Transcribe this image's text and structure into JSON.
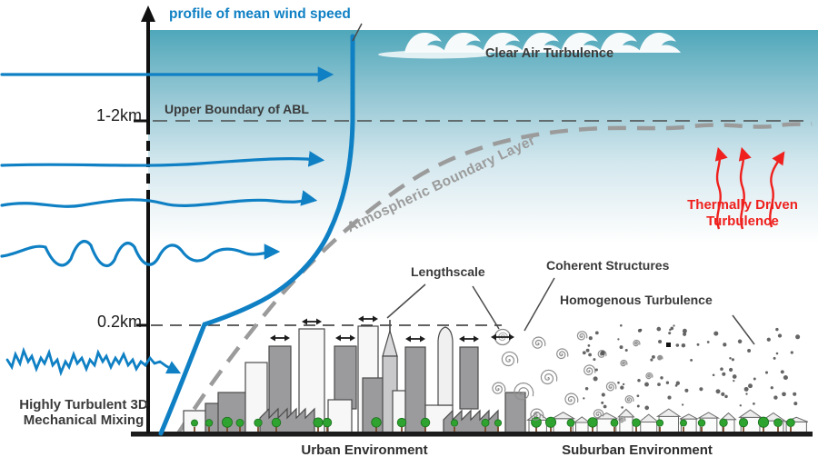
{
  "labels": {
    "profile_title": "profile of mean wind speed",
    "clear_air_turbulence": "Clear Air Turbulence",
    "upper_boundary_abl": "Upper Boundary of ABL",
    "atmospheric_boundary_layer": "Atmospheric Boundary Layer",
    "height_upper": "1-2km",
    "height_lower": "0.2km",
    "lengthscale": "Lengthscale",
    "coherent_structures": "Coherent Structures",
    "homogenous_turbulence": "Homogenous Turbulence",
    "thermally_driven_line1": "Thermally Driven",
    "thermally_driven_line2": "Turbulence",
    "mechanical_mixing_line1": "Highly Turbulent 3D",
    "mechanical_mixing_line2": "Mechanical Mixing",
    "urban_environment": "Urban Environment",
    "suburban_environment": "Suburban Environment"
  },
  "colors": {
    "wind_blue": "#0f80c4",
    "thermal_red": "#ef201d",
    "abl_gray": "#9b9b9b",
    "sky_teal": "#4fa7ba",
    "text_dark": "#3a3a3a",
    "tree_green": "#2fa32f",
    "building_gray": "#9b9b9d",
    "building_white": "#f7f7f7"
  }
}
